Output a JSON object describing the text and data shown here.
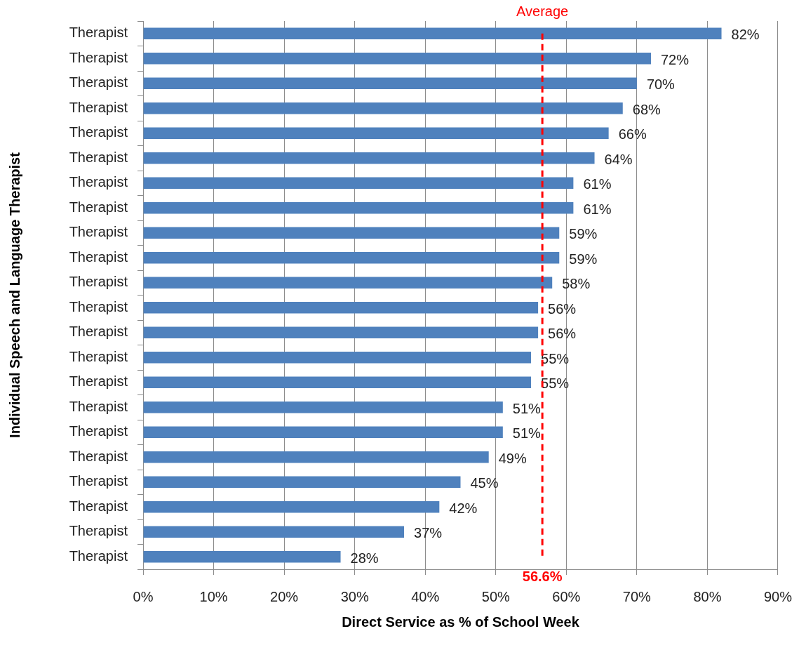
{
  "chart_data": {
    "type": "bar",
    "orientation": "horizontal",
    "xlabel": "Direct Service as % of School Week",
    "ylabel": "Individual Speech and Language Therapist",
    "categories": [
      "Therapist",
      "Therapist",
      "Therapist",
      "Therapist",
      "Therapist",
      "Therapist",
      "Therapist",
      "Therapist",
      "Therapist",
      "Therapist",
      "Therapist",
      "Therapist",
      "Therapist",
      "Therapist",
      "Therapist",
      "Therapist",
      "Therapist",
      "Therapist",
      "Therapist",
      "Therapist",
      "Therapist",
      "Therapist"
    ],
    "values": [
      82,
      72,
      70,
      68,
      66,
      64,
      61,
      61,
      59,
      59,
      58,
      56,
      56,
      55,
      55,
      51,
      51,
      49,
      45,
      42,
      37,
      28
    ],
    "color": "#4f81bd",
    "value_labels": [
      "82%",
      "72%",
      "70%",
      "68%",
      "66%",
      "64%",
      "61%",
      "61%",
      "59%",
      "59%",
      "58%",
      "56%",
      "56%",
      "55%",
      "55%",
      "51%",
      "51%",
      "49%",
      "45%",
      "42%",
      "37%",
      "28%"
    ],
    "xlim": [
      0,
      90
    ],
    "xticks": [
      {
        "value": 0,
        "label": "0%"
      },
      {
        "value": 10,
        "label": "10%"
      },
      {
        "value": 20,
        "label": "20%"
      },
      {
        "value": 30,
        "label": "30%"
      },
      {
        "value": 40,
        "label": "40%"
      },
      {
        "value": 50,
        "label": "50%"
      },
      {
        "value": 60,
        "label": "60%"
      },
      {
        "value": 70,
        "label": "70%"
      },
      {
        "value": 80,
        "label": "80%"
      },
      {
        "value": 90,
        "label": "90%"
      }
    ],
    "grid": "x",
    "ref_lines": [
      {
        "axis": "x",
        "value": 56.6,
        "label": "Average",
        "color": "#ff0000",
        "line_style": "dashed"
      }
    ],
    "annotations": [
      "56.6%"
    ]
  }
}
